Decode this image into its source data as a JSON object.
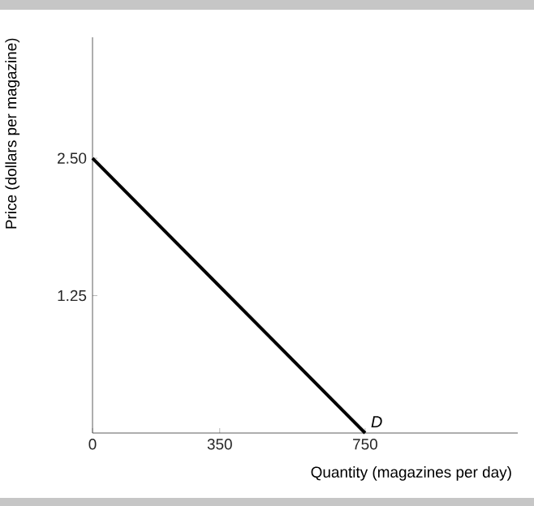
{
  "chart_data": {
    "type": "line",
    "xlabel": "Quantity (magazines per day)",
    "ylabel": "Price (dollars per magazine)",
    "x": [
      0,
      750
    ],
    "series": [
      {
        "color": "#000000",
        "values": [
          2.5,
          0
        ]
      }
    ],
    "xlim": [
      0,
      1170
    ],
    "ylim": [
      0,
      3.6
    ],
    "xticks": [
      0,
      350,
      750
    ],
    "yticks": [
      1.25,
      {
        "value": 2.5,
        "label": "2.50"
      }
    ],
    "annotations": [
      {
        "text": "D",
        "x": 750,
        "y": 0
      }
    ],
    "marker": "none",
    "line_style": "solid"
  }
}
